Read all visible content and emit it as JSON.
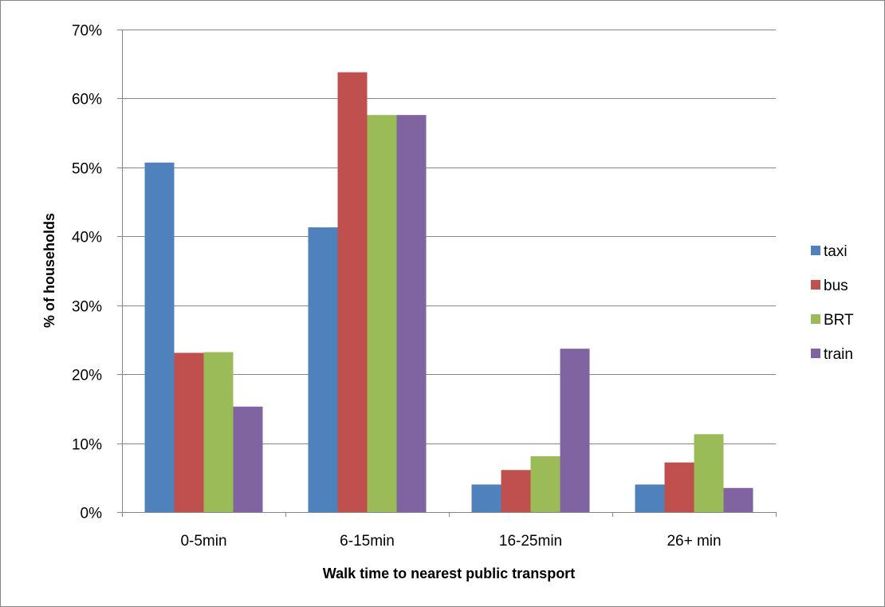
{
  "chart_data": {
    "type": "bar",
    "title": "",
    "xlabel": "Walk time to nearest public transport",
    "ylabel": "% of households",
    "categories": [
      "0-5min",
      "6-15min",
      "16-25min",
      "26+ min"
    ],
    "series": [
      {
        "name": "taxi",
        "color": "#4F81BD",
        "values": [
          50.7,
          41.3,
          4.0,
          4.0
        ]
      },
      {
        "name": "bus",
        "color": "#C0504D",
        "values": [
          23.1,
          63.8,
          6.1,
          7.2
        ]
      },
      {
        "name": "BRT",
        "color": "#9BBB59",
        "values": [
          23.2,
          57.6,
          8.1,
          11.3
        ]
      },
      {
        "name": "train",
        "color": "#8064A2",
        "values": [
          15.3,
          57.6,
          23.7,
          3.5
        ]
      }
    ],
    "ylim": [
      0,
      70
    ],
    "yticks": [
      0,
      10,
      20,
      30,
      40,
      50,
      60,
      70
    ],
    "ytick_labels": [
      "0%",
      "10%",
      "20%",
      "30%",
      "40%",
      "50%",
      "60%",
      "70%"
    ],
    "grid": true,
    "legend_position": "right"
  }
}
